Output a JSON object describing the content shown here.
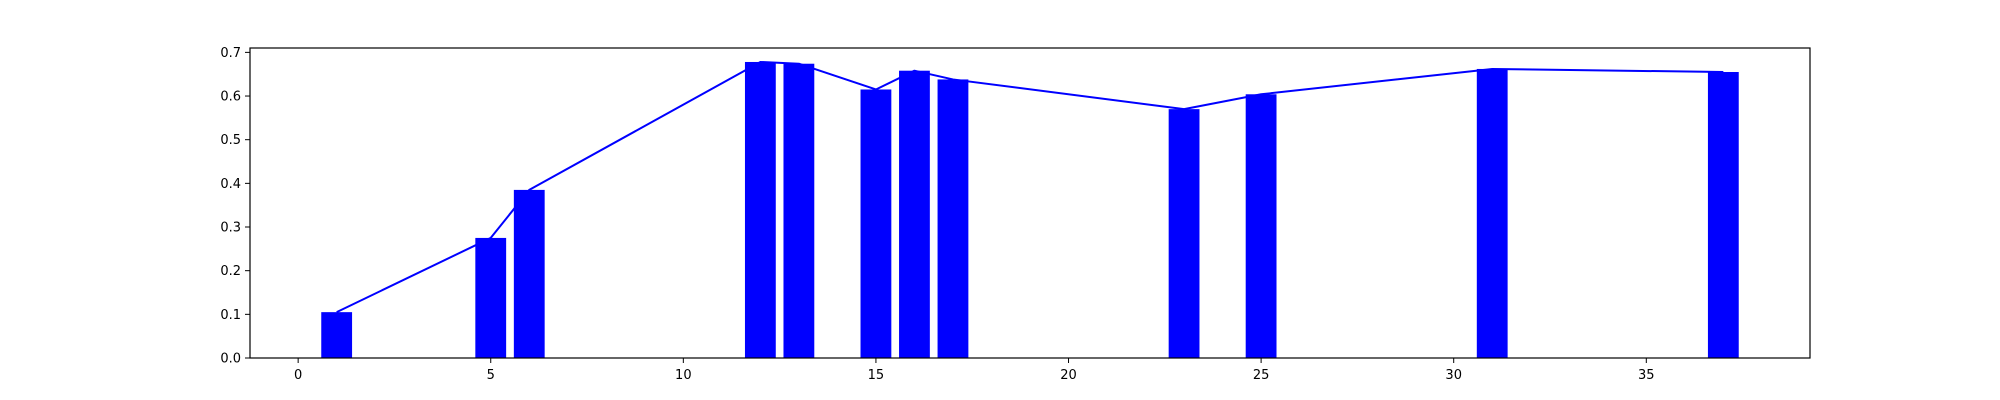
{
  "chart_data": {
    "type": "bar",
    "title": "",
    "xlabel": "",
    "ylabel": "",
    "xlim": [
      -1.25,
      39.25
    ],
    "ylim": [
      0,
      0.71
    ],
    "bar_width": 0.8,
    "x": [
      1,
      5,
      6,
      12,
      13,
      15,
      16,
      17,
      23,
      25,
      31,
      37
    ],
    "values": [
      0.105,
      0.275,
      0.385,
      0.678,
      0.674,
      0.615,
      0.658,
      0.638,
      0.57,
      0.604,
      0.662,
      0.655
    ],
    "line": {
      "x": [
        1,
        5,
        6,
        12,
        13,
        15,
        16,
        17,
        23,
        25,
        31,
        37
      ],
      "y": [
        0.105,
        0.275,
        0.385,
        0.678,
        0.674,
        0.615,
        0.658,
        0.638,
        0.57,
        0.604,
        0.662,
        0.655
      ]
    },
    "x_ticks": [
      0,
      5,
      10,
      15,
      20,
      25,
      30,
      35
    ],
    "x_tick_labels": [
      "0",
      "5",
      "10",
      "15",
      "20",
      "25",
      "30",
      "35"
    ],
    "y_ticks": [
      0.0,
      0.1,
      0.2,
      0.3,
      0.4,
      0.5,
      0.6,
      0.7
    ],
    "y_tick_labels": [
      "0.0",
      "0.1",
      "0.2",
      "0.3",
      "0.4",
      "0.5",
      "0.6",
      "0.7"
    ],
    "grid": false,
    "legend": "none",
    "colors": {
      "bars": "#0000ff",
      "line": "#0000ff",
      "axes": "#000000"
    }
  }
}
